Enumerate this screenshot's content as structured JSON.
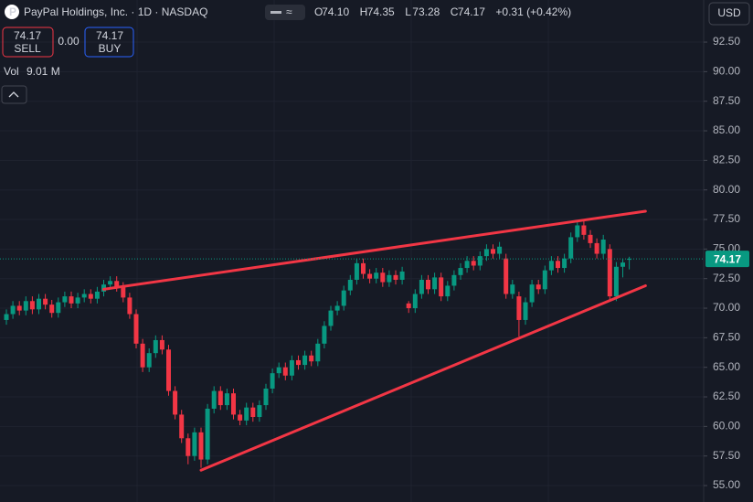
{
  "header": {
    "symbol": "PayPal Holdings, Inc. · 1D · NASDAQ",
    "ohlc": [
      {
        "label": "O",
        "value": "74.10"
      },
      {
        "label": "H",
        "value": "74.35"
      },
      {
        "label": "L",
        "value": "73.28"
      },
      {
        "label": "C",
        "value": "74.17"
      }
    ],
    "change": "+0.31 (+0.42%)",
    "sell": {
      "price": "74.17",
      "label": "SELL"
    },
    "spread": "0.00",
    "buy": {
      "price": "74.17",
      "label": "BUY"
    },
    "volume": {
      "label": "Vol",
      "value": "9.01 M"
    },
    "currency": "USD"
  },
  "chart_data": {
    "type": "candlestick",
    "up_color": "#089981",
    "down_color": "#f23645",
    "line_color": "#f23645",
    "grid": true,
    "ylim": [
      53.61,
      96.06
    ],
    "yticks": [
      {
        "value": 55,
        "label": "55.00"
      },
      {
        "value": 57.5,
        "label": "57.50"
      },
      {
        "value": 60,
        "label": "60.00"
      },
      {
        "value": 62.5,
        "label": "62.50"
      },
      {
        "value": 65,
        "label": "65.00"
      },
      {
        "value": 67.5,
        "label": "67.50"
      },
      {
        "value": 70,
        "label": "70.00"
      },
      {
        "value": 72.5,
        "label": "72.50"
      },
      {
        "value": 75,
        "label": "75.00"
      },
      {
        "value": 77.5,
        "label": "77.50"
      },
      {
        "value": 80,
        "label": "80.00"
      },
      {
        "value": 82.5,
        "label": "82.50"
      },
      {
        "value": 85,
        "label": "85.00"
      },
      {
        "value": 87.5,
        "label": "87.50"
      },
      {
        "value": 90,
        "label": "90.00"
      },
      {
        "value": 92.5,
        "label": "92.50"
      }
    ],
    "open": [
      69.0,
      69.5,
      70.2,
      69.8,
      70.6,
      69.9,
      70.8,
      70.3,
      69.6,
      70.5,
      71.0,
      70.4,
      70.9,
      71.2,
      70.8,
      71.4,
      72.0,
      72.3,
      71.8,
      70.9,
      69.5,
      67.0,
      65.0,
      66.2,
      67.3,
      66.5,
      63.0,
      61.0,
      59.0,
      57.5,
      59.5,
      57.2,
      61.5,
      63.0,
      61.8,
      62.8,
      61.0,
      60.5,
      61.6,
      60.8,
      61.8,
      63.2,
      64.5,
      65.0,
      64.3,
      65.6,
      65.2,
      66.0,
      65.5,
      67.0,
      68.5,
      69.8,
      70.2,
      71.5,
      72.4,
      73.8,
      72.9,
      72.5,
      73.0,
      72.2,
      72.8,
      72.4,
      70.4,
      70.0,
      71.2,
      72.4,
      71.6,
      72.6,
      71.0,
      71.9,
      72.8,
      73.4,
      74.0,
      73.6,
      74.4,
      75.0,
      74.6,
      74.2,
      71.2,
      71.0,
      69.0,
      70.5,
      72.0,
      71.6,
      73.2,
      74.0,
      73.4,
      74.2,
      76.0,
      77.0,
      76.2,
      75.5,
      74.6,
      75.0,
      71.0,
      73.5,
      74.1
    ],
    "high": [
      69.9,
      70.6,
      70.6,
      71.0,
      71.0,
      71.2,
      71.2,
      70.7,
      70.9,
      71.4,
      71.4,
      71.3,
      71.6,
      71.6,
      71.8,
      72.4,
      72.7,
      72.7,
      72.2,
      71.3,
      69.9,
      67.4,
      66.6,
      67.7,
      67.7,
      66.9,
      63.4,
      61.4,
      59.4,
      59.9,
      59.9,
      61.9,
      63.4,
      63.4,
      63.2,
      63.2,
      61.4,
      62.0,
      62.0,
      62.2,
      63.6,
      64.9,
      65.4,
      65.4,
      66.0,
      66.0,
      66.4,
      66.4,
      67.4,
      68.9,
      70.2,
      70.6,
      71.9,
      72.8,
      74.2,
      74.2,
      73.3,
      73.4,
      73.4,
      73.2,
      73.2,
      73.5,
      70.6,
      71.6,
      72.8,
      72.8,
      73.0,
      73.0,
      72.3,
      73.2,
      73.8,
      74.4,
      74.4,
      74.8,
      75.4,
      75.4,
      75.6,
      74.6,
      72.4,
      71.4,
      70.9,
      72.4,
      72.4,
      73.6,
      74.4,
      74.4,
      74.6,
      76.4,
      77.4,
      77.4,
      76.6,
      75.9,
      76.2,
      75.4,
      73.9,
      74.2,
      74.35
    ],
    "low": [
      68.6,
      69.1,
      69.4,
      69.4,
      69.5,
      69.5,
      69.9,
      69.2,
      69.2,
      70.1,
      70.0,
      70.0,
      70.5,
      70.4,
      70.4,
      71.0,
      71.6,
      71.4,
      70.5,
      69.1,
      66.6,
      64.6,
      64.6,
      65.8,
      66.1,
      62.6,
      60.6,
      58.6,
      56.8,
      57.1,
      56.5,
      56.8,
      61.1,
      61.4,
      61.4,
      60.6,
      60.1,
      60.1,
      60.4,
      60.4,
      61.4,
      62.8,
      64.1,
      63.9,
      63.9,
      64.8,
      64.8,
      65.1,
      65.1,
      66.6,
      68.1,
      69.4,
      69.8,
      71.1,
      72.0,
      72.5,
      72.1,
      72.1,
      71.8,
      71.8,
      72.0,
      72.0,
      69.6,
      69.6,
      70.8,
      71.2,
      71.2,
      70.6,
      70.6,
      71.5,
      72.4,
      73.0,
      73.2,
      73.2,
      74.0,
      74.2,
      74.2,
      70.8,
      70.8,
      67.6,
      68.6,
      70.1,
      71.2,
      71.2,
      72.8,
      73.0,
      73.0,
      73.8,
      75.6,
      75.8,
      75.1,
      74.2,
      74.2,
      70.6,
      70.6,
      72.6,
      73.28
    ],
    "close": [
      69.5,
      70.2,
      69.8,
      70.6,
      69.9,
      70.8,
      70.3,
      69.6,
      70.5,
      71.0,
      70.4,
      70.9,
      71.2,
      70.8,
      71.4,
      72.0,
      72.3,
      71.8,
      70.9,
      69.5,
      67.0,
      65.0,
      66.2,
      67.3,
      66.5,
      63.0,
      61.0,
      59.0,
      57.5,
      59.5,
      57.2,
      61.5,
      63.0,
      61.8,
      62.8,
      61.0,
      60.5,
      61.6,
      60.8,
      61.8,
      63.2,
      64.5,
      65.0,
      64.3,
      65.6,
      65.2,
      66.0,
      65.5,
      67.0,
      68.5,
      69.8,
      70.2,
      71.5,
      72.4,
      73.8,
      72.9,
      72.5,
      73.0,
      72.2,
      72.8,
      72.4,
      73.1,
      70.0,
      71.2,
      72.4,
      71.6,
      72.6,
      71.0,
      71.9,
      72.8,
      73.4,
      74.0,
      73.6,
      74.4,
      75.0,
      74.6,
      75.2,
      71.2,
      72.0,
      69.0,
      70.5,
      72.0,
      71.6,
      73.2,
      74.0,
      73.4,
      74.2,
      76.0,
      77.0,
      76.2,
      75.5,
      74.6,
      75.8,
      71.0,
      73.5,
      73.86,
      74.17
    ],
    "trendlines": [
      {
        "x": [
          15,
          98.5
        ],
        "y": [
          71.6,
          78.2
        ]
      },
      {
        "x": [
          30,
          98.5
        ],
        "y": [
          56.3,
          71.9
        ]
      }
    ]
  }
}
